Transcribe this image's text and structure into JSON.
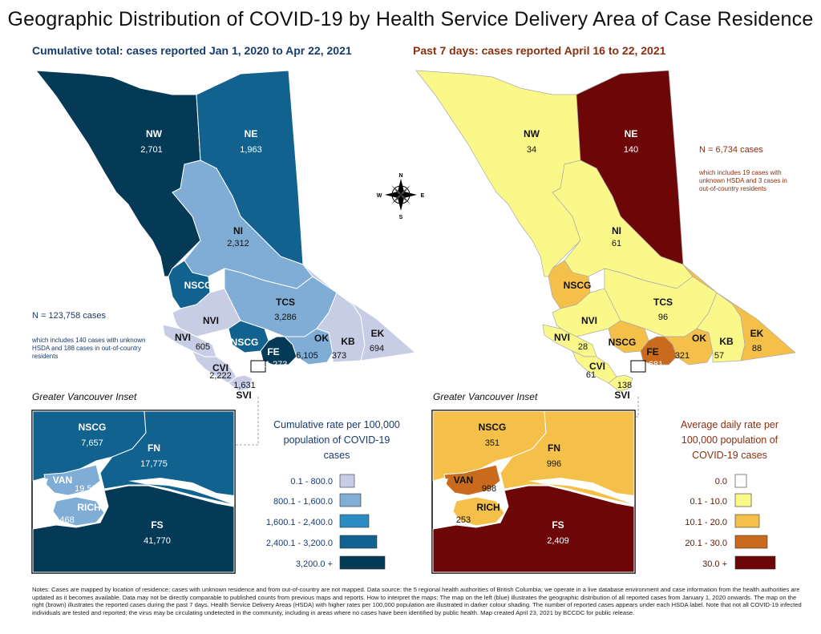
{
  "title": "Geographic Distribution of COVID-19 by Health Service Delivery Area of Case Residence",
  "left_map": {
    "subtitle": "Cumulative total: cases reported Jan 1, 2020 to Apr 22, 2021",
    "total": "N = 123,758 cases",
    "total_note": "which includes 140 cases with unknown HSDA and 188 cases in out-of-country residents",
    "regions": [
      {
        "name": "NW",
        "value": "2,701"
      },
      {
        "name": "NE",
        "value": "1,963"
      },
      {
        "name": "NI",
        "value": "2,312"
      },
      {
        "name": "NSCG",
        "value": ""
      },
      {
        "name": "TCS",
        "value": "3,286"
      },
      {
        "name": "NVI",
        "value": ""
      },
      {
        "name": "NVI",
        "value": "605"
      },
      {
        "name": "NSCG",
        "value": ""
      },
      {
        "name": "FE",
        "value": "11,273"
      },
      {
        "name": "OK",
        "value": "6,105"
      },
      {
        "name": "KB",
        "value": "373"
      },
      {
        "name": "EK",
        "value": "694"
      },
      {
        "name": "CVI",
        "value": "2,222"
      },
      {
        "name": "SVI",
        "value": "1,631"
      }
    ],
    "inset_title": "Greater Vancouver Inset",
    "inset_regions": [
      {
        "name": "NSCG",
        "value": "7,657"
      },
      {
        "name": "FN",
        "value": "17,775"
      },
      {
        "name": "VAN",
        "value": "19,595"
      },
      {
        "name": "RICH",
        "value": "3,468"
      },
      {
        "name": "FS",
        "value": "41,770"
      }
    ],
    "legend_title": "Cumulative rate per 100,000 population of COVID-19 cases",
    "legend": [
      {
        "label": "0.1 - 800.0",
        "color": "#c8cde6"
      },
      {
        "label": "800.1 - 1,600.0",
        "color": "#7fadd6"
      },
      {
        "label": "1,600.1 - 2,400.0",
        "color": "#2b8cc4"
      },
      {
        "label": "2,400.1 - 3,200.0",
        "color": "#11628f"
      },
      {
        "label": "3,200.0 +",
        "color": "#053a56"
      }
    ]
  },
  "right_map": {
    "subtitle": "Past 7 days: cases reported April 16 to 22, 2021",
    "total": "N = 6,734 cases",
    "total_note": "which includes 19 cases with unknown HSDA and 3 cases in out-of-country residents",
    "regions": [
      {
        "name": "NW",
        "value": "34"
      },
      {
        "name": "NE",
        "value": "140"
      },
      {
        "name": "NI",
        "value": "61"
      },
      {
        "name": "NSCG",
        "value": ""
      },
      {
        "name": "TCS",
        "value": "96"
      },
      {
        "name": "NVI",
        "value": ""
      },
      {
        "name": "NVI",
        "value": "28"
      },
      {
        "name": "NSCG",
        "value": ""
      },
      {
        "name": "FE",
        "value": "681"
      },
      {
        "name": "OK",
        "value": "321"
      },
      {
        "name": "KB",
        "value": "57"
      },
      {
        "name": "EK",
        "value": "88"
      },
      {
        "name": "CVI",
        "value": "61"
      },
      {
        "name": "SVI",
        "value": "138"
      }
    ],
    "inset_title": "Greater Vancouver Inset",
    "inset_regions": [
      {
        "name": "NSCG",
        "value": "351"
      },
      {
        "name": "FN",
        "value": "996"
      },
      {
        "name": "VAN",
        "value": "998"
      },
      {
        "name": "RICH",
        "value": "253"
      },
      {
        "name": "FS",
        "value": "2,409"
      }
    ],
    "legend_title": "Average daily rate per 100,000 population of COVID-19 cases",
    "legend": [
      {
        "label": "0.0",
        "color": "#ffffff"
      },
      {
        "label": "0.1 - 10.0",
        "color": "#fbf88a"
      },
      {
        "label": "10.1 - 20.0",
        "color": "#f4c04a"
      },
      {
        "label": "20.1 - 30.0",
        "color": "#c96a1c"
      },
      {
        "label": "30.0 +",
        "color": "#6d0707"
      }
    ]
  },
  "compass": {
    "n": "N",
    "s": "S",
    "e": "E",
    "w": "W"
  },
  "notes": "Notes: Cases are mapped by location of residence; cases with unknown residence and from out-of-country are not mapped. Data source: the 5 regional health authorities of British Columbia; we operate in a live database environment and case information from the health authorities are updated as it becomes available. Data may not be directly comparable to published counts from previous maps and reports. How to interpret the maps: The map on the left (blue) illustrates the geographic distribution of all reported cases from January 1, 2020 onwards. The map on the right (brown) illustrates the reported cases during the past 7 days. Health Service Delivery Areas (HSDA) with higher rates per 100,000 population are illustrated in darker colour shading. The number of reported cases appears under each HSDA label. Note that not all COVID-19 infected individuals are tested and reported; the virus may be circulating undetected in the community, including in areas where no cases have been identified by public health. Map created April 23, 2021 by BCCDC for public release."
}
